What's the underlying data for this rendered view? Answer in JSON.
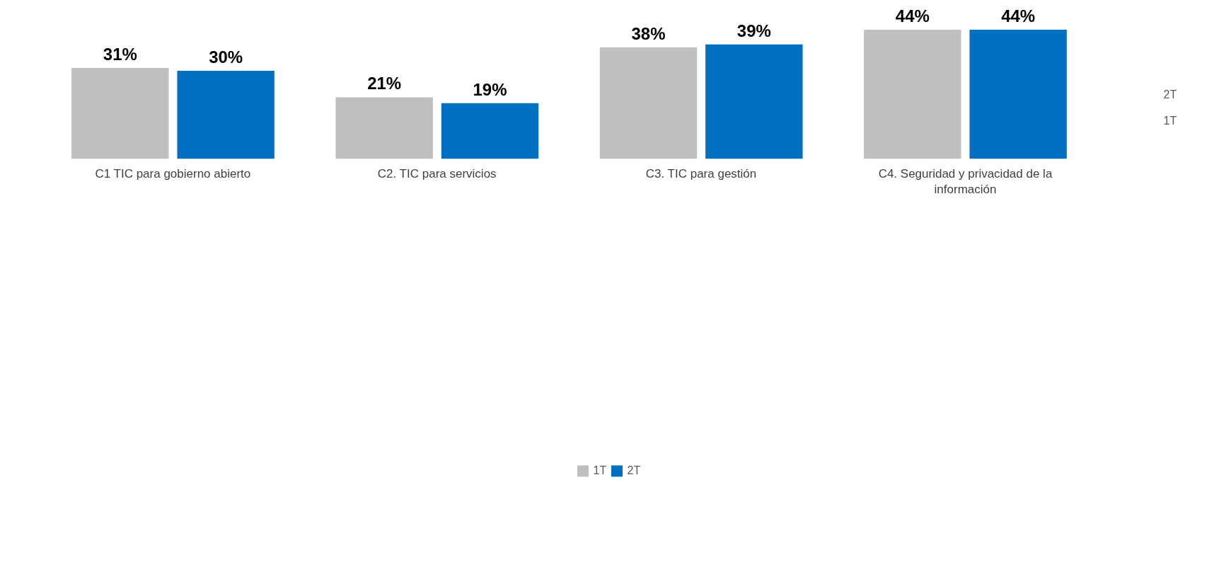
{
  "chart_data": {
    "type": "bar",
    "categories": [
      "C1 TIC para gobierno abierto",
      "C2. TIC para servicios",
      "C3. TIC para gestión",
      "C4. Seguridad y privacidad de la información"
    ],
    "series": [
      {
        "name": "1T",
        "color": "#bfbfbf",
        "values": [
          31,
          21,
          38,
          44
        ],
        "value_labels": [
          "31%",
          "21%",
          "38%",
          "44%"
        ]
      },
      {
        "name": "2T",
        "color": "#0070c0",
        "values": [
          30,
          19,
          39,
          44
        ],
        "value_labels": [
          "30%",
          "19%",
          "39%",
          "44%"
        ]
      }
    ],
    "annotations": [
      "2T",
      "1T"
    ],
    "legend": "bottom",
    "grid": false
  }
}
